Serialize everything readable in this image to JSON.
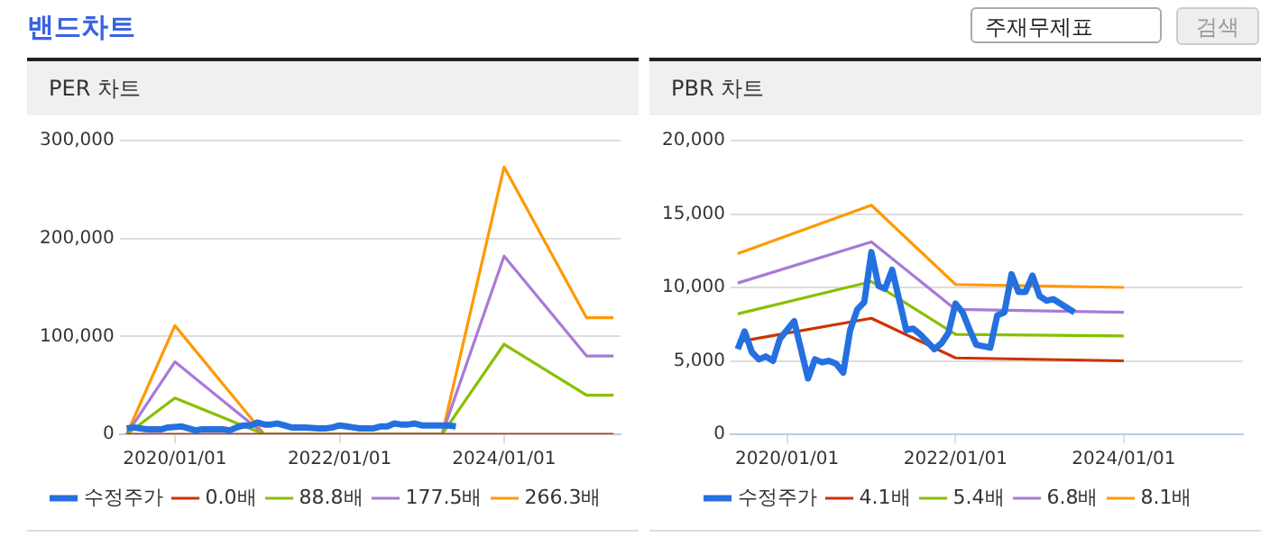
{
  "chart_data": [
    {
      "type": "line",
      "title": "PER 차트",
      "annotations": [
        "밴드차트",
        "주재무제표",
        "검색"
      ],
      "marker": "none",
      "grid": "y",
      "legend": "bottom",
      "xlim": [
        "2019-05-01",
        "2025-06-01"
      ],
      "xticks": [
        {
          "value": "2020-01-01",
          "label": "2020/01/01"
        },
        {
          "value": "2022-01-01",
          "label": "2022/01/01"
        },
        {
          "value": "2024-01-01",
          "label": "2024/01/01"
        }
      ],
      "ylim": [
        0,
        300000
      ],
      "yticks": [
        {
          "value": 0,
          "label": "0"
        },
        {
          "value": 100000,
          "label": "100,000"
        },
        {
          "value": 200000,
          "label": "200,000"
        },
        {
          "value": 300000,
          "label": "300,000"
        }
      ],
      "series": [
        {
          "name": "수정주가",
          "color": "#2470e0",
          "x": [
            "2019-06",
            "2019-07",
            "2019-08",
            "2019-09",
            "2019-10",
            "2019-11",
            "2019-12",
            "2020-02",
            "2020-04",
            "2020-05",
            "2020-06",
            "2020-07",
            "2020-08",
            "2020-09",
            "2020-10",
            "2020-11",
            "2020-12",
            "2021-01",
            "2021-02",
            "2021-03",
            "2021-04",
            "2021-05",
            "2021-06",
            "2021-07",
            "2021-08",
            "2021-10",
            "2021-11",
            "2021-12",
            "2022-01",
            "2022-02",
            "2022-03",
            "2022-04",
            "2022-06",
            "2022-07",
            "2022-08",
            "2022-09",
            "2022-10",
            "2022-11",
            "2022-12",
            "2023-01",
            "2023-02",
            "2023-03",
            "2023-05",
            "2023-06"
          ],
          "values": [
            6000,
            7000,
            6000,
            5000,
            5000,
            5000,
            7000,
            8000,
            4000,
            5000,
            5000,
            5000,
            5000,
            4000,
            7000,
            9000,
            9000,
            12000,
            10000,
            10000,
            11000,
            9000,
            7000,
            7000,
            7000,
            6000,
            6000,
            7000,
            9000,
            8000,
            7000,
            6000,
            6000,
            8000,
            8000,
            11000,
            10000,
            10000,
            11000,
            9000,
            9000,
            9000,
            9000,
            8000
          ]
        },
        {
          "name": "0.0배",
          "color": "#cc3300",
          "x": [
            "2019-06",
            "2025-05"
          ],
          "values": [
            0,
            0
          ]
        },
        {
          "name": "88.8배",
          "color": "#88c000",
          "x": [
            "2019-06",
            "2020-01",
            "2021-02",
            "2023-04",
            "2024-01",
            "2025-01",
            "2025-05"
          ],
          "values": [
            0,
            37000,
            0,
            0,
            92000,
            40000,
            40000
          ]
        },
        {
          "name": "177.5배",
          "color": "#a87ad8",
          "x": [
            "2019-06",
            "2020-01",
            "2021-02",
            "2023-04",
            "2024-01",
            "2025-01",
            "2025-05"
          ],
          "values": [
            0,
            74000,
            0,
            0,
            182000,
            80000,
            80000
          ]
        },
        {
          "name": "266.3배",
          "color": "#ff9900",
          "x": [
            "2019-06",
            "2020-01",
            "2021-02",
            "2023-04",
            "2024-01",
            "2025-01",
            "2025-05"
          ],
          "values": [
            0,
            111000,
            0,
            0,
            273000,
            119000,
            119000
          ]
        }
      ]
    },
    {
      "type": "line",
      "title": "PBR 차트",
      "marker": "none",
      "grid": "y",
      "legend": "bottom",
      "xlim": [
        "2019-05-01",
        "2025-06-01"
      ],
      "xticks": [
        {
          "value": "2020-01-01",
          "label": "2020/01/01"
        },
        {
          "value": "2022-01-01",
          "label": "2022/01/01"
        },
        {
          "value": "2024-01-01",
          "label": "2024/01/01"
        }
      ],
      "ylim": [
        0,
        20000
      ],
      "yticks": [
        {
          "value": 0,
          "label": "0"
        },
        {
          "value": 5000,
          "label": "5,000"
        },
        {
          "value": 10000,
          "label": "10,000"
        },
        {
          "value": 15000,
          "label": "15,000"
        },
        {
          "value": 20000,
          "label": "20,000"
        }
      ],
      "series": [
        {
          "name": "수정주가",
          "color": "#2470e0",
          "x": [
            "2019-06",
            "2019-07",
            "2019-08",
            "2019-09",
            "2019-10",
            "2019-11",
            "2019-12",
            "2020-02",
            "2020-04",
            "2020-05",
            "2020-06",
            "2020-07",
            "2020-08",
            "2020-09",
            "2020-10",
            "2020-11",
            "2020-12",
            "2021-01",
            "2021-02",
            "2021-03",
            "2021-04",
            "2021-05",
            "2021-06",
            "2021-07",
            "2021-08",
            "2021-10",
            "2021-11",
            "2021-12",
            "2022-01",
            "2022-02",
            "2022-03",
            "2022-04",
            "2022-06",
            "2022-07",
            "2022-08",
            "2022-09",
            "2022-10",
            "2022-11",
            "2022-12",
            "2023-01",
            "2023-02",
            "2023-03",
            "2023-05",
            "2023-06"
          ],
          "values": [
            5800,
            7000,
            5600,
            5100,
            5300,
            5000,
            6500,
            7700,
            3800,
            5100,
            4900,
            5000,
            4800,
            4200,
            7100,
            8500,
            9000,
            12400,
            10100,
            9900,
            11200,
            9200,
            7100,
            7200,
            6800,
            5800,
            6200,
            6900,
            8900,
            8300,
            7200,
            6100,
            5900,
            8100,
            8300,
            10900,
            9700,
            9700,
            10800,
            9400,
            9100,
            9200,
            8600,
            8300
          ]
        },
        {
          "name": "4.1배",
          "color": "#cc3300",
          "x": [
            "2019-06",
            "2021-01",
            "2022-01",
            "2024-01"
          ],
          "values": [
            6300,
            7900,
            5200,
            5000
          ]
        },
        {
          "name": "5.4배",
          "color": "#88c000",
          "x": [
            "2019-06",
            "2021-01",
            "2022-01",
            "2024-01"
          ],
          "values": [
            8200,
            10400,
            6800,
            6700
          ]
        },
        {
          "name": "6.8배",
          "color": "#a87ad8",
          "x": [
            "2019-06",
            "2021-01",
            "2022-01",
            "2024-01"
          ],
          "values": [
            10300,
            13100,
            8500,
            8300
          ]
        },
        {
          "name": "8.1배",
          "color": "#ff9900",
          "x": [
            "2019-06",
            "2021-01",
            "2022-01",
            "2024-01"
          ],
          "values": [
            12300,
            15600,
            10200,
            10000
          ]
        }
      ]
    }
  ]
}
